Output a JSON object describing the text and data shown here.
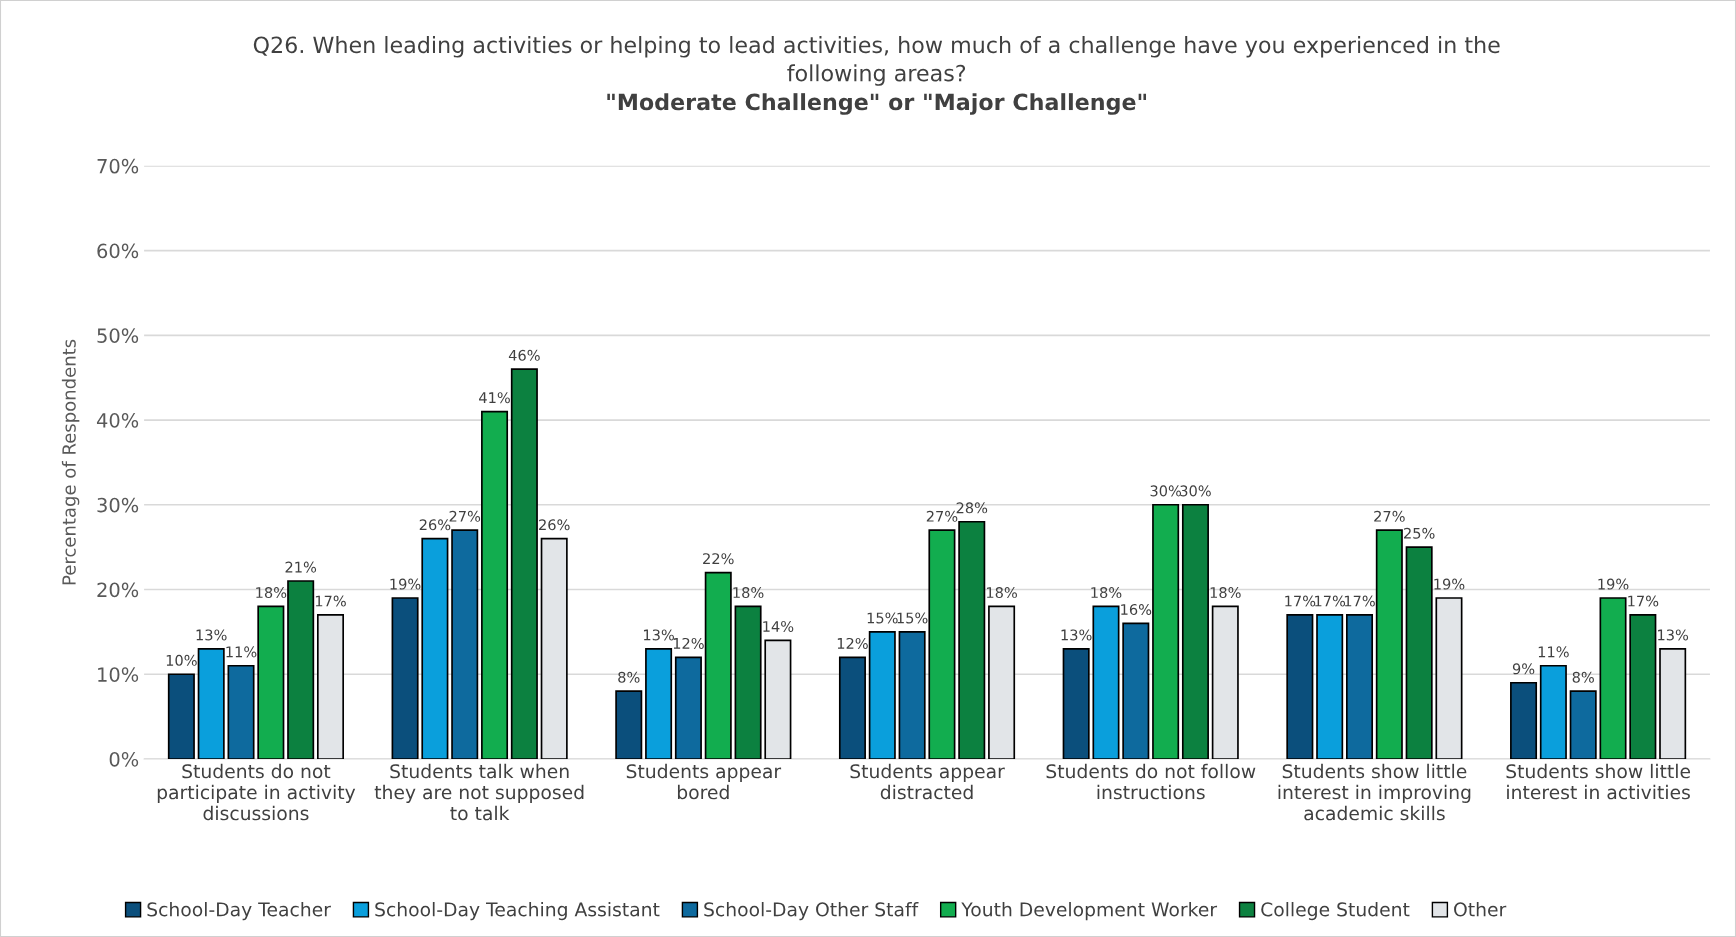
{
  "chart_data": {
    "type": "bar",
    "title": "Q26. When leading activities or helping to lead activities, how much of a challenge have you experienced in the\nfollowing areas?",
    "subtitle": "\"Moderate Challenge\" or \"Major Challenge\"",
    "ylabel": "Percentage of Respondents",
    "categories": [
      "Students do not\nparticipate in activity\ndiscussions",
      "Students talk when\nthey are not supposed\nto talk",
      "Students appear\nbored",
      "Students appear\ndistracted",
      "Students do not follow\ninstructions",
      "Students show little\ninterest in improving\nacademic skills",
      "Students show little\ninterest in activities"
    ],
    "series": [
      {
        "name": "School-Day Teacher",
        "color": "#0b4f7c",
        "values": [
          10,
          19,
          8,
          12,
          13,
          17,
          9
        ],
        "value_labels": [
          "10%",
          "19%",
          "8%",
          "12%",
          "13%",
          "17%",
          "9%"
        ]
      },
      {
        "name": "School-Day Teaching Assistant",
        "color": "#0a9fdc",
        "values": [
          13,
          26,
          13,
          15,
          18,
          17,
          11
        ],
        "value_labels": [
          "13%",
          "26%",
          "13%",
          "15%",
          "18%",
          "17%",
          "11%"
        ]
      },
      {
        "name": "School-Day Other Staff",
        "color": "#0e6a9e",
        "values": [
          11,
          27,
          12,
          15,
          16,
          17,
          8
        ],
        "value_labels": [
          "11%",
          "27%",
          "12%",
          "15%",
          "16%",
          "17%",
          "8%"
        ]
      },
      {
        "name": "Youth Development Worker",
        "color": "#12ad4f",
        "values": [
          18,
          41,
          22,
          27,
          30,
          27,
          19
        ],
        "value_labels": [
          "18%",
          "41%",
          "22%",
          "27%",
          "30%",
          "27%",
          "19%"
        ]
      },
      {
        "name": "College Student",
        "color": "#0c8140",
        "values": [
          21,
          46,
          18,
          28,
          30,
          25,
          17
        ],
        "value_labels": [
          "21%",
          "46%",
          "18%",
          "28%",
          "30%",
          "25%",
          "17%"
        ]
      },
      {
        "name": "Other",
        "color": "#e2e5e8",
        "values": [
          17,
          26,
          14,
          18,
          18,
          19,
          13
        ],
        "value_labels": [
          "17%",
          "26%",
          "14%",
          "18%",
          "18%",
          "19%",
          "13%"
        ]
      }
    ],
    "ylim": [
      0,
      70
    ],
    "yticks": [
      {
        "value": 0,
        "label": "0%"
      },
      {
        "value": 10,
        "label": "10%"
      },
      {
        "value": 20,
        "label": "20%"
      },
      {
        "value": 30,
        "label": "30%"
      },
      {
        "value": 40,
        "label": "40%"
      },
      {
        "value": 50,
        "label": "50%"
      },
      {
        "value": 60,
        "label": "60%"
      },
      {
        "value": 70,
        "label": "70%"
      }
    ],
    "grid": "y",
    "legend": "bottom"
  }
}
